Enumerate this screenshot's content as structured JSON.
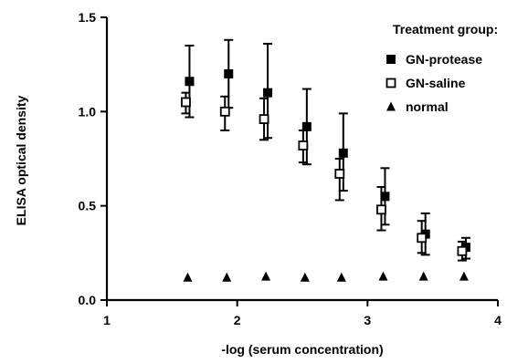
{
  "chart_data": {
    "type": "scatter",
    "title": "",
    "xlabel": "-log (serum concentration)",
    "ylabel": "ELISA optical density",
    "xlim": [
      1,
      4
    ],
    "ylim": [
      0,
      1.5
    ],
    "xticks": [
      1,
      2,
      3,
      4
    ],
    "yticks": [
      0.0,
      0.5,
      1.0,
      1.5
    ],
    "xtick_labels": [
      "1",
      "2",
      "3",
      "4"
    ],
    "ytick_labels": [
      "0.0",
      "0.5",
      "1.0",
      "1.5"
    ],
    "grid": false,
    "legend": {
      "title": "Treatment group:",
      "placement": "top-right"
    },
    "x": [
      1.62,
      1.92,
      2.22,
      2.52,
      2.8,
      3.12,
      3.43,
      3.74
    ],
    "series": [
      {
        "name": "GN-protease",
        "marker": "filled-square",
        "color": "#000000",
        "values": [
          1.16,
          1.2,
          1.1,
          0.92,
          0.78,
          0.55,
          0.35,
          0.28
        ],
        "err_hi": [
          1.35,
          1.38,
          1.36,
          1.12,
          0.99,
          0.7,
          0.46,
          0.33
        ],
        "err_lo": [
          0.97,
          1.02,
          0.86,
          0.72,
          0.58,
          0.4,
          0.24,
          0.22
        ]
      },
      {
        "name": "GN-saline",
        "marker": "open-square",
        "color": "#000000",
        "values": [
          1.05,
          1.0,
          0.96,
          0.82,
          0.67,
          0.48,
          0.33,
          0.26
        ],
        "err_hi": [
          1.1,
          1.08,
          1.07,
          0.9,
          0.75,
          0.6,
          0.42,
          0.31
        ],
        "err_lo": [
          0.99,
          0.9,
          0.85,
          0.73,
          0.53,
          0.37,
          0.25,
          0.21
        ]
      },
      {
        "name": "normal",
        "marker": "filled-triangle",
        "color": "#000000",
        "values": [
          0.12,
          0.12,
          0.125,
          0.12,
          0.12,
          0.125,
          0.125,
          0.125
        ],
        "err_hi": null,
        "err_lo": null
      }
    ]
  }
}
